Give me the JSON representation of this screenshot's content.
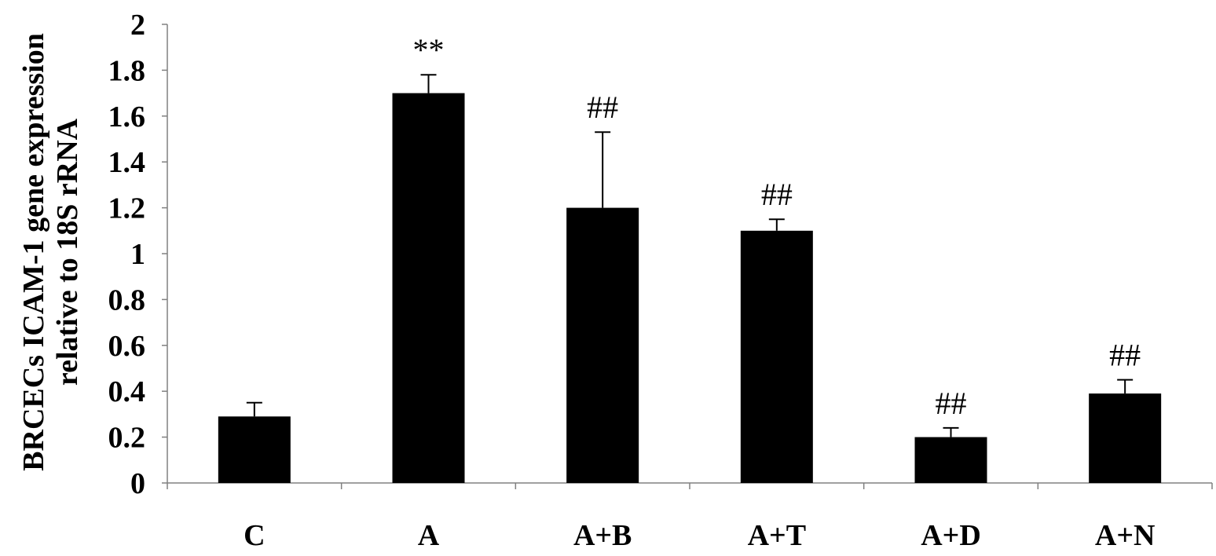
{
  "chart_data": {
    "type": "bar",
    "title": "",
    "ylabel": [
      "BRCECs ICAM-1 gene expression",
      "relative to 18S rRNA"
    ],
    "xlabel": "",
    "categories": [
      "C",
      "A",
      "A+B",
      "A+T",
      "A+D",
      "A+N"
    ],
    "values": [
      0.29,
      1.7,
      1.2,
      1.1,
      0.2,
      0.39
    ],
    "error_upper": [
      0.06,
      0.08,
      0.33,
      0.05,
      0.04,
      0.06
    ],
    "annotations": [
      "",
      "**",
      "##",
      "##",
      "##",
      "##"
    ],
    "ylim": [
      0,
      2
    ],
    "yticks": [
      "0",
      "0.2",
      "0.4",
      "0.6",
      "0.8",
      "1",
      "1.2",
      "1.4",
      "1.6",
      "1.8",
      "2"
    ],
    "grid": false,
    "colors": {
      "bar": "#000000",
      "axis": "#808080"
    }
  }
}
